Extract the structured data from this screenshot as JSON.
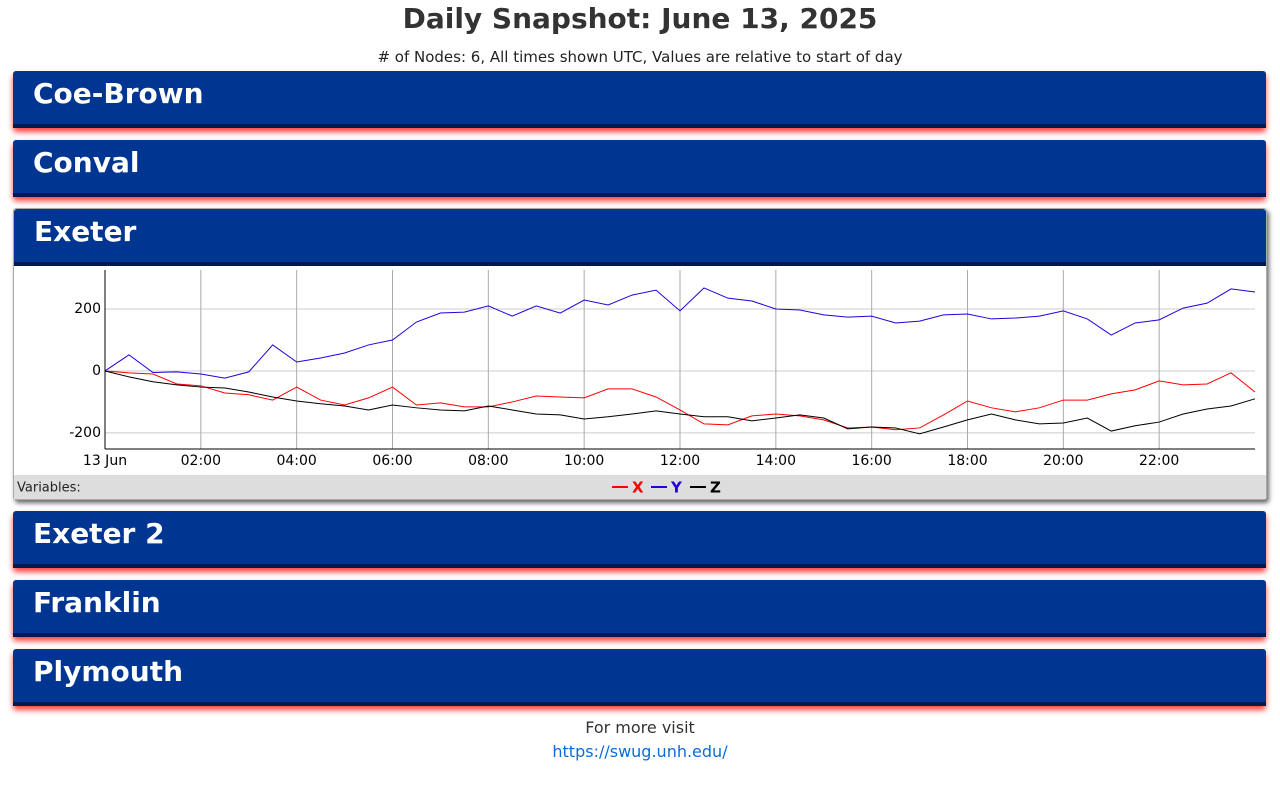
{
  "header": {
    "title": "Daily Snapshot: June 13, 2025",
    "subtitle": "# of Nodes: 6, All times shown UTC, Values are relative to start of day"
  },
  "panels": [
    {
      "name": "Coe-Brown"
    },
    {
      "name": "Conval"
    },
    {
      "name": "Exeter"
    },
    {
      "name": "Exeter 2"
    },
    {
      "name": "Franklin"
    },
    {
      "name": "Plymouth"
    }
  ],
  "chart_data": {
    "type": "line",
    "legend_label": "Variables:",
    "x": [
      0,
      0.5,
      1,
      1.5,
      2,
      2.5,
      3,
      3.5,
      4,
      4.5,
      5,
      5.5,
      6,
      6.5,
      7,
      7.5,
      8,
      8.5,
      9,
      9.5,
      10,
      10.5,
      11,
      11.5,
      12,
      12.5,
      13,
      13.5,
      14,
      14.5,
      15,
      15.5,
      16,
      16.5,
      17,
      17.5,
      18,
      18.5,
      19,
      19.5,
      20,
      20.5,
      21,
      21.5,
      22,
      22.5,
      23,
      23.5,
      24
    ],
    "series": [
      {
        "name": "X",
        "color": "#ff0000",
        "values": [
          0,
          -6,
          -10,
          -42,
          -48,
          -71,
          -77,
          -94,
          -52,
          -94,
          -110,
          -87,
          -52,
          -110,
          -103,
          -116,
          -116,
          -100,
          -81,
          -84,
          -87,
          -58,
          -58,
          -84,
          -126,
          -171,
          -174,
          -145,
          -139,
          -145,
          -158,
          -184,
          -181,
          -190,
          -184,
          -142,
          -97,
          -119,
          -132,
          -119,
          -94,
          -94,
          -74,
          -61,
          -32,
          -45,
          -42,
          -6,
          -68
        ]
      },
      {
        "name": "Y",
        "color": "#2200dd",
        "values": [
          0,
          52,
          -5,
          -3,
          -10,
          -23,
          -3,
          84,
          29,
          42,
          58,
          84,
          100,
          158,
          187,
          190,
          210,
          177,
          210,
          187,
          229,
          213,
          245,
          261,
          194,
          268,
          235,
          226,
          200,
          197,
          181,
          174,
          177,
          155,
          161,
          181,
          184,
          168,
          171,
          177,
          194,
          168,
          116,
          155,
          165,
          203,
          219,
          265,
          255
        ]
      },
      {
        "name": "Z",
        "color": "#000000",
        "values": [
          0,
          -19,
          -35,
          -45,
          -52,
          -55,
          -68,
          -84,
          -97,
          -106,
          -113,
          -126,
          -110,
          -119,
          -126,
          -129,
          -113,
          -126,
          -139,
          -142,
          -155,
          -148,
          -139,
          -129,
          -139,
          -148,
          -148,
          -161,
          -152,
          -142,
          -152,
          -187,
          -181,
          -184,
          -203,
          -181,
          -158,
          -139,
          -158,
          -171,
          -168,
          -152,
          -194,
          -177,
          -165,
          -139,
          -123,
          -113,
          -90
        ]
      }
    ],
    "xlim": [
      0,
      24
    ],
    "xticks": [
      {
        "value": 0,
        "label": "13 Jun"
      },
      {
        "value": 2,
        "label": "02:00"
      },
      {
        "value": 4,
        "label": "04:00"
      },
      {
        "value": 6,
        "label": "06:00"
      },
      {
        "value": 8,
        "label": "08:00"
      },
      {
        "value": 10,
        "label": "10:00"
      },
      {
        "value": 12,
        "label": "12:00"
      },
      {
        "value": 14,
        "label": "14:00"
      },
      {
        "value": 16,
        "label": "16:00"
      },
      {
        "value": 18,
        "label": "18:00"
      },
      {
        "value": 20,
        "label": "20:00"
      },
      {
        "value": 22,
        "label": "22:00"
      }
    ],
    "ylim": [
      -252,
      326
    ],
    "yticks": [
      -200,
      0,
      200
    ],
    "grid": true
  },
  "footer": {
    "text": "For more visit",
    "link": "https://swug.unh.edu/"
  }
}
